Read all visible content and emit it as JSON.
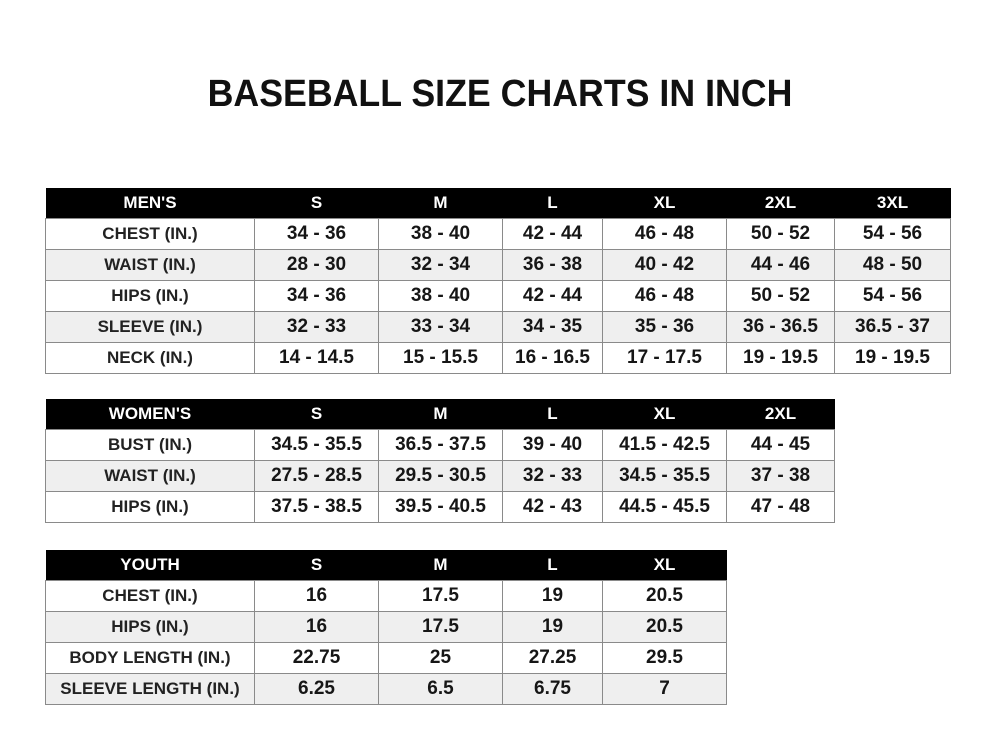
{
  "title": "BASEBALL SIZE CHARTS IN INCH",
  "tables": [
    {
      "id": "mens",
      "headers": [
        "MEN'S",
        "S",
        "M",
        "L",
        "XL",
        "2XL",
        "3XL"
      ],
      "rows": [
        [
          "CHEST (IN.)",
          "34 - 36",
          "38 - 40",
          "42 - 44",
          "46 - 48",
          "50 - 52",
          "54 - 56"
        ],
        [
          "WAIST (IN.)",
          "28 - 30",
          "32 - 34",
          "36 - 38",
          "40 - 42",
          "44 - 46",
          "48 - 50"
        ],
        [
          "HIPS (IN.)",
          "34 - 36",
          "38 - 40",
          "42 - 44",
          "46 - 48",
          "50 - 52",
          "54 - 56"
        ],
        [
          "SLEEVE (IN.)",
          "32 - 33",
          "33 - 34",
          "34 - 35",
          "35 - 36",
          "36 - 36.5",
          "36.5 - 37"
        ],
        [
          "NECK (IN.)",
          "14 - 14.5",
          "15 - 15.5",
          "16 - 16.5",
          "17 - 17.5",
          "19 - 19.5",
          "19 - 19.5"
        ]
      ]
    },
    {
      "id": "womens",
      "headers": [
        "WOMEN'S",
        "S",
        "M",
        "L",
        "XL",
        "2XL"
      ],
      "rows": [
        [
          "BUST (IN.)",
          "34.5 - 35.5",
          "36.5 - 37.5",
          "39 - 40",
          "41.5 - 42.5",
          "44 - 45"
        ],
        [
          "WAIST (IN.)",
          "27.5 - 28.5",
          "29.5 - 30.5",
          "32 - 33",
          "34.5 - 35.5",
          "37 - 38"
        ],
        [
          "HIPS (IN.)",
          "37.5 - 38.5",
          "39.5 - 40.5",
          "42 - 43",
          "44.5 - 45.5",
          "47 - 48"
        ]
      ]
    },
    {
      "id": "youth",
      "headers": [
        "YOUTH",
        "S",
        "M",
        "L",
        "XL"
      ],
      "rows": [
        [
          "CHEST (IN.)",
          "16",
          "17.5",
          "19",
          "20.5"
        ],
        [
          "HIPS (IN.)",
          "16",
          "17.5",
          "19",
          "20.5"
        ],
        [
          "BODY LENGTH (IN.)",
          "22.75",
          "25",
          "27.25",
          "29.5"
        ],
        [
          "SLEEVE LENGTH (IN.)",
          "6.25",
          "6.5",
          "6.75",
          "7"
        ]
      ]
    }
  ]
}
